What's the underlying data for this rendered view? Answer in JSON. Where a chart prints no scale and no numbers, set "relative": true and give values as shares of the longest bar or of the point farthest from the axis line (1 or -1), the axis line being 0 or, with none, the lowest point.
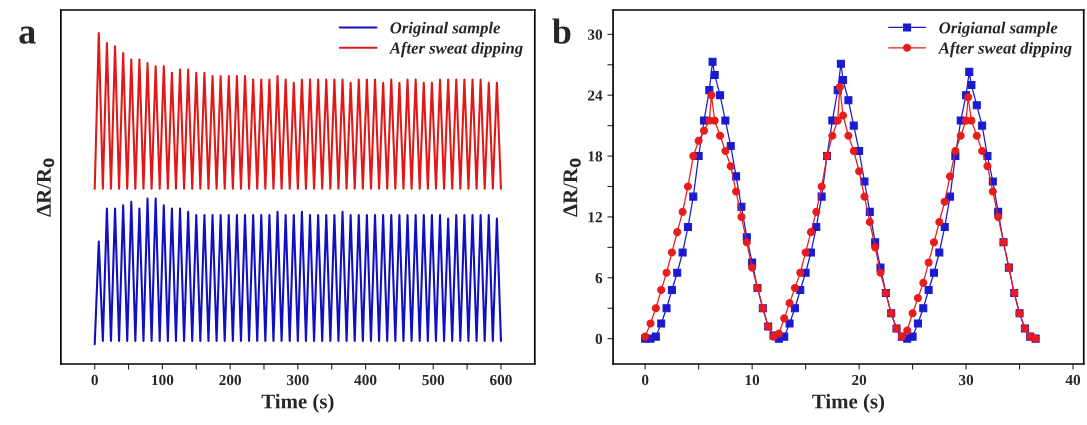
{
  "chart_data": [
    {
      "type": "line",
      "relative": true,
      "xlabel": "Time (s)",
      "ylabel": "ΔR/R$_{0}$",
      "annotations": [
        "a"
      ],
      "xlim": [
        -50,
        650
      ],
      "xticks": [
        0,
        {
          "value": 50,
          "label": null
        },
        100,
        {
          "value": 150,
          "label": null
        },
        200,
        {
          "value": 250,
          "label": null
        },
        300,
        {
          "value": 350,
          "label": null
        },
        400,
        {
          "value": 450,
          "label": null
        },
        500,
        {
          "value": 550,
          "label": null
        },
        600
      ],
      "tick_labels": "x",
      "legend": "top right",
      "line_style": "solid",
      "marker": "none",
      "series": [
        {
          "name": "Original sample",
          "color": "#1010c0",
          "x": [
            0,
            6,
            12,
            18,
            24,
            30,
            36,
            42,
            48,
            54,
            60,
            66,
            72,
            78,
            84,
            90,
            96,
            102,
            108,
            114,
            120,
            126,
            132,
            138,
            144,
            150,
            156,
            162,
            168,
            174,
            180,
            186,
            192,
            198,
            204,
            210,
            216,
            222,
            228,
            234,
            240,
            246,
            252,
            258,
            264,
            270,
            276,
            282,
            288,
            294,
            300,
            306,
            312,
            318,
            324,
            330,
            336,
            342,
            348,
            354,
            360,
            366,
            372,
            378,
            384,
            390,
            396,
            402,
            408,
            414,
            420,
            426,
            432,
            438,
            444,
            450,
            456,
            462,
            468,
            474,
            480,
            486,
            492,
            498,
            504,
            510,
            516,
            522,
            528,
            534,
            540,
            546,
            552,
            558,
            564,
            570,
            576,
            582,
            588,
            594,
            600
          ],
          "values": [
            0.06,
            0.37,
            0.07,
            0.47,
            0.07,
            0.47,
            0.07,
            0.48,
            0.07,
            0.49,
            0.07,
            0.47,
            0.07,
            0.5,
            0.07,
            0.5,
            0.07,
            0.48,
            0.07,
            0.47,
            0.07,
            0.47,
            0.07,
            0.46,
            0.07,
            0.45,
            0.07,
            0.45,
            0.07,
            0.45,
            0.07,
            0.45,
            0.07,
            0.45,
            0.07,
            0.45,
            0.07,
            0.45,
            0.07,
            0.45,
            0.07,
            0.45,
            0.07,
            0.45,
            0.07,
            0.46,
            0.07,
            0.45,
            0.07,
            0.45,
            0.07,
            0.46,
            0.07,
            0.45,
            0.07,
            0.45,
            0.07,
            0.45,
            0.07,
            0.45,
            0.07,
            0.46,
            0.07,
            0.45,
            0.07,
            0.45,
            0.07,
            0.45,
            0.07,
            0.45,
            0.07,
            0.45,
            0.07,
            0.45,
            0.07,
            0.45,
            0.07,
            0.45,
            0.07,
            0.45,
            0.07,
            0.45,
            0.07,
            0.45,
            0.07,
            0.45,
            0.07,
            0.44,
            0.07,
            0.45,
            0.07,
            0.45,
            0.07,
            0.45,
            0.07,
            0.45,
            0.07,
            0.45,
            0.07,
            0.44,
            0.07
          ]
        },
        {
          "name": "After sweat dipping",
          "color": "#e01818",
          "x": [
            0,
            6,
            12,
            18,
            24,
            30,
            36,
            42,
            48,
            54,
            60,
            66,
            72,
            78,
            84,
            90,
            96,
            102,
            108,
            114,
            120,
            126,
            132,
            138,
            144,
            150,
            156,
            162,
            168,
            174,
            180,
            186,
            192,
            198,
            204,
            210,
            216,
            222,
            228,
            234,
            240,
            246,
            252,
            258,
            264,
            270,
            276,
            282,
            288,
            294,
            300,
            306,
            312,
            318,
            324,
            330,
            336,
            342,
            348,
            354,
            360,
            366,
            372,
            378,
            384,
            390,
            396,
            402,
            408,
            414,
            420,
            426,
            432,
            438,
            444,
            450,
            456,
            462,
            468,
            474,
            480,
            486,
            492,
            498,
            504,
            510,
            516,
            522,
            528,
            534,
            540,
            546,
            552,
            558,
            564,
            570,
            576,
            582,
            588,
            594,
            600
          ],
          "values": [
            0.53,
            1.0,
            0.53,
            0.97,
            0.53,
            0.96,
            0.53,
            0.94,
            0.53,
            0.92,
            0.53,
            0.92,
            0.53,
            0.91,
            0.53,
            0.9,
            0.53,
            0.9,
            0.53,
            0.88,
            0.53,
            0.89,
            0.53,
            0.89,
            0.53,
            0.88,
            0.53,
            0.88,
            0.53,
            0.87,
            0.53,
            0.87,
            0.53,
            0.87,
            0.53,
            0.87,
            0.53,
            0.87,
            0.53,
            0.86,
            0.53,
            0.86,
            0.53,
            0.86,
            0.53,
            0.87,
            0.53,
            0.86,
            0.53,
            0.85,
            0.53,
            0.86,
            0.53,
            0.86,
            0.53,
            0.86,
            0.53,
            0.86,
            0.53,
            0.86,
            0.53,
            0.86,
            0.53,
            0.85,
            0.53,
            0.86,
            0.53,
            0.86,
            0.53,
            0.86,
            0.53,
            0.85,
            0.53,
            0.86,
            0.53,
            0.85,
            0.53,
            0.86,
            0.53,
            0.86,
            0.53,
            0.85,
            0.53,
            0.85,
            0.53,
            0.86,
            0.53,
            0.86,
            0.53,
            0.86,
            0.53,
            0.86,
            0.53,
            0.86,
            0.53,
            0.86,
            0.53,
            0.85,
            0.53,
            0.85,
            0.53
          ]
        }
      ]
    },
    {
      "type": "line",
      "xlabel": "Time (s)",
      "ylabel": "ΔR/R$_{0}$",
      "annotations": [
        "b"
      ],
      "xlim": [
        -3,
        41
      ],
      "xticks": [
        0,
        {
          "value": 5,
          "label": null
        },
        10,
        {
          "value": 15,
          "label": null
        },
        20,
        {
          "value": 25,
          "label": null
        },
        30,
        {
          "value": 35,
          "label": null
        },
        40
      ],
      "ylim": [
        -2.5,
        32.4
      ],
      "yticks": [
        0,
        {
          "value": 3,
          "label": null
        },
        6,
        {
          "value": 9,
          "label": null
        },
        12,
        {
          "value": 15,
          "label": null
        },
        18,
        {
          "value": 21,
          "label": null
        },
        24,
        {
          "value": 27,
          "label": null
        },
        30
      ],
      "legend": "top right",
      "line_style": "solid",
      "series": [
        {
          "name": "Origianal sample",
          "color": "#1a1ad0",
          "marker": "square",
          "x": [
            0,
            0.5,
            1,
            1.5,
            2,
            2.5,
            3,
            3.5,
            4,
            4.5,
            5,
            5.5,
            6,
            6.3,
            6.5,
            7,
            7.5,
            8,
            8.5,
            9,
            9.5,
            10,
            10.5,
            11,
            11.5,
            12,
            12.5,
            13,
            13.5,
            14,
            14.5,
            15,
            15.5,
            16,
            16.5,
            17,
            17.5,
            18,
            18.3,
            18.5,
            19,
            19.5,
            20,
            20.5,
            21,
            21.5,
            22,
            22.5,
            23,
            23.5,
            24,
            24.5,
            25,
            25.5,
            26,
            26.5,
            27,
            27.5,
            28,
            28.5,
            29,
            29.5,
            30,
            30.3,
            30.5,
            31,
            31.5,
            32,
            32.5,
            33,
            33.5,
            34,
            34.5,
            35,
            35.5,
            36,
            36.5
          ],
          "values": [
            0,
            0,
            0.2,
            1.5,
            3,
            4.8,
            6.5,
            8.5,
            11,
            14,
            18,
            21.5,
            24.5,
            27.3,
            26,
            24,
            21.5,
            19,
            16,
            13,
            10,
            7.5,
            5,
            3,
            1.2,
            0.3,
            0,
            0.2,
            1.5,
            3,
            4.8,
            6.5,
            8.5,
            11,
            14,
            18,
            21.5,
            24.5,
            27.1,
            25.5,
            23.5,
            21,
            18.5,
            15.5,
            12.5,
            9.5,
            7,
            4.5,
            2.5,
            1,
            0.2,
            0,
            0.2,
            1.5,
            3,
            4.8,
            6.5,
            8.5,
            11,
            14,
            18,
            21.5,
            24,
            26.3,
            25,
            23,
            21,
            18,
            15.5,
            12.5,
            9.5,
            7,
            4.5,
            2.5,
            1,
            0.2,
            0
          ]
        },
        {
          "name": "After sweat dipping",
          "color": "#e81c1c",
          "marker": "circle",
          "x": [
            0,
            0.5,
            1,
            1.5,
            2,
            2.5,
            3,
            3.5,
            4,
            4.5,
            5,
            5.5,
            6,
            6.2,
            6.5,
            7,
            7.5,
            8,
            8.5,
            9,
            9.5,
            10,
            10.5,
            11,
            11.5,
            12,
            12.5,
            13,
            13.5,
            14,
            14.5,
            15,
            15.5,
            16,
            16.5,
            17,
            17.5,
            18,
            18.2,
            18.5,
            19,
            19.5,
            20,
            20.5,
            21,
            21.5,
            22,
            22.5,
            23,
            23.5,
            24,
            24.5,
            25,
            25.5,
            26,
            26.5,
            27,
            27.5,
            28,
            28.5,
            29,
            29.5,
            30,
            30.2,
            30.5,
            31,
            31.5,
            32,
            32.5,
            33,
            33.5,
            34,
            34.5,
            35,
            35.5,
            36,
            36.5
          ],
          "values": [
            0.2,
            1.5,
            3,
            4.8,
            6.5,
            8.5,
            10.5,
            12.5,
            15,
            18,
            19.5,
            20.5,
            21.5,
            24,
            21.5,
            20,
            18.5,
            17,
            14.5,
            12,
            9.5,
            7,
            5,
            3,
            1.2,
            0.2,
            0.5,
            2,
            3.5,
            5,
            6.5,
            8.5,
            10.5,
            12.5,
            15,
            18,
            20,
            21.5,
            24.8,
            22,
            20,
            18.5,
            16.5,
            14,
            11.5,
            9,
            6.5,
            4.5,
            2.5,
            1,
            0.2,
            0.8,
            2.5,
            4,
            5.5,
            7.5,
            9.5,
            11.5,
            13.5,
            16,
            18.5,
            20,
            21.5,
            23.8,
            21.5,
            20,
            18.5,
            17,
            14.5,
            12,
            9.5,
            7,
            4.5,
            2.5,
            1,
            0.2,
            0
          ]
        }
      ]
    }
  ]
}
